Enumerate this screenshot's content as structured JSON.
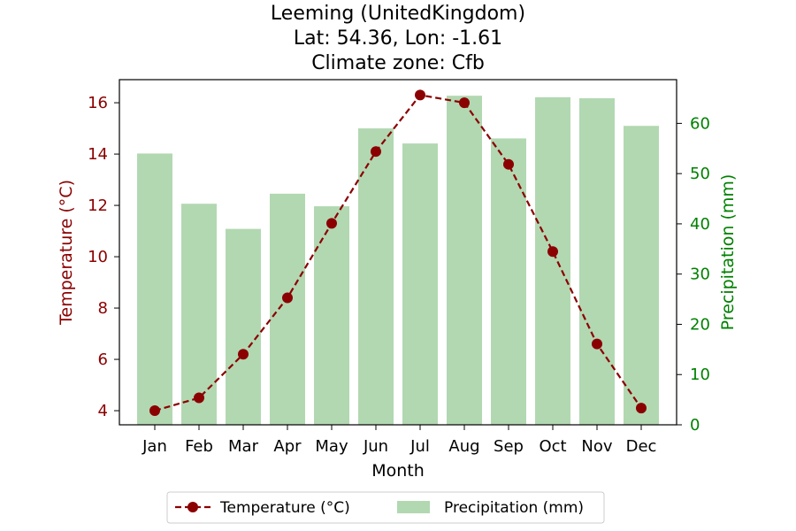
{
  "chart_data": {
    "type": "bar",
    "title_lines": [
      "Leeming (UnitedKingdom)",
      "Lat: 54.36, Lon: -1.61",
      "Climate zone: Cfb"
    ],
    "xlabel": "Month",
    "ylabel_left": "Temperature (°C)",
    "ylabel_right": "Precipitation (mm)",
    "categories": [
      "Jan",
      "Feb",
      "Mar",
      "Apr",
      "May",
      "Jun",
      "Jul",
      "Aug",
      "Sep",
      "Oct",
      "Nov",
      "Dec"
    ],
    "series": [
      {
        "name": "Temperature (°C)",
        "type": "line",
        "axis": "left",
        "color": "#8b0000",
        "values": [
          4.0,
          4.5,
          6.2,
          8.4,
          11.3,
          14.1,
          16.3,
          16.0,
          13.6,
          10.2,
          6.6,
          4.1
        ]
      },
      {
        "name": "Precipitation (mm)",
        "type": "bar",
        "axis": "right",
        "color": "#b2d8b2",
        "values": [
          54,
          44,
          39,
          46,
          43.5,
          59,
          56,
          65.5,
          57,
          65.2,
          65,
          59.5
        ]
      }
    ],
    "ylim_left": [
      3.45,
      16.9
    ],
    "yticks_left": [
      4,
      6,
      8,
      10,
      12,
      14,
      16
    ],
    "ylim_right": [
      0,
      68.7
    ],
    "yticks_right": [
      0,
      10,
      20,
      30,
      40,
      50,
      60
    ],
    "left_axis_color": "#8b0000",
    "right_axis_color": "#008000",
    "grid": false,
    "legend_placement": "bottom-center"
  }
}
